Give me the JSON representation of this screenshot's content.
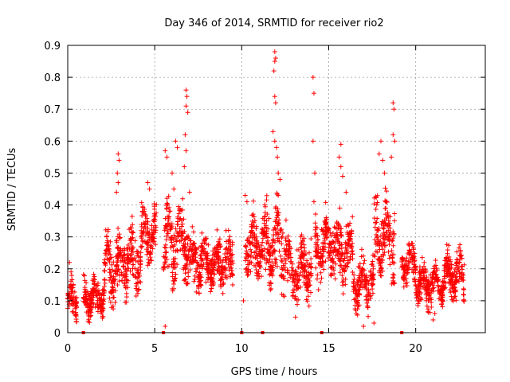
{
  "chart_data": {
    "type": "scatter",
    "title": "Day 346 of 2014, SRMTID for receiver rio2",
    "xlabel": "GPS time / hours",
    "ylabel": "SRMTID / TECUs",
    "xlim": [
      0,
      24
    ],
    "ylim": [
      0,
      0.9
    ],
    "x_ticks": [
      0,
      5,
      10,
      15,
      20
    ],
    "x_tick_labels": [
      "0",
      "5",
      "10",
      "15",
      "20"
    ],
    "y_ticks": [
      0,
      0.1,
      0.2,
      0.3,
      0.4,
      0.5,
      0.6,
      0.7,
      0.8,
      0.9
    ],
    "y_tick_labels": [
      "0",
      "0.1",
      "0.2",
      "0.3",
      "0.4",
      "0.5",
      "0.6",
      "0.7",
      "0.8",
      "0.9"
    ],
    "grid": true,
    "marker": "+",
    "color": "#ff0000",
    "segments": [
      {
        "start": 0.0,
        "end": 0.55,
        "base": 0.1,
        "var": 0.05
      },
      {
        "start": 0.9,
        "end": 2.1,
        "base": 0.11,
        "var": 0.05
      },
      {
        "start": 2.1,
        "end": 3.2,
        "base": 0.2,
        "var": 0.08
      },
      {
        "start": 3.2,
        "end": 4.2,
        "base": 0.22,
        "var": 0.08
      },
      {
        "start": 4.2,
        "end": 5.1,
        "base": 0.3,
        "var": 0.08
      },
      {
        "start": 5.5,
        "end": 7.0,
        "base": 0.28,
        "var": 0.1
      },
      {
        "start": 7.0,
        "end": 8.3,
        "base": 0.22,
        "var": 0.07
      },
      {
        "start": 8.3,
        "end": 9.5,
        "base": 0.22,
        "var": 0.07
      },
      {
        "start": 10.2,
        "end": 11.3,
        "base": 0.27,
        "var": 0.08
      },
      {
        "start": 11.3,
        "end": 12.6,
        "base": 0.27,
        "var": 0.1
      },
      {
        "start": 12.6,
        "end": 14.0,
        "base": 0.2,
        "var": 0.08
      },
      {
        "start": 14.2,
        "end": 15.3,
        "base": 0.27,
        "var": 0.08
      },
      {
        "start": 15.3,
        "end": 16.4,
        "base": 0.25,
        "var": 0.08
      },
      {
        "start": 16.4,
        "end": 17.6,
        "base": 0.15,
        "var": 0.06
      },
      {
        "start": 17.6,
        "end": 18.8,
        "base": 0.3,
        "var": 0.1
      },
      {
        "start": 19.2,
        "end": 20.0,
        "base": 0.22,
        "var": 0.05
      },
      {
        "start": 20.0,
        "end": 21.6,
        "base": 0.15,
        "var": 0.05
      },
      {
        "start": 21.6,
        "end": 22.8,
        "base": 0.18,
        "var": 0.06
      }
    ],
    "outliers": [
      [
        0.1,
        0.22
      ],
      [
        2.9,
        0.56
      ],
      [
        2.95,
        0.54
      ],
      [
        2.85,
        0.5
      ],
      [
        2.9,
        0.47
      ],
      [
        2.8,
        0.44
      ],
      [
        4.6,
        0.47
      ],
      [
        4.7,
        0.45
      ],
      [
        5.6,
        0.57
      ],
      [
        5.7,
        0.55
      ],
      [
        6.0,
        0.5
      ],
      [
        6.2,
        0.6
      ],
      [
        6.3,
        0.58
      ],
      [
        6.1,
        0.45
      ],
      [
        6.8,
        0.76
      ],
      [
        6.85,
        0.74
      ],
      [
        6.8,
        0.71
      ],
      [
        6.9,
        0.69
      ],
      [
        6.75,
        0.62
      ],
      [
        6.8,
        0.57
      ],
      [
        6.7,
        0.52
      ],
      [
        7.0,
        0.44
      ],
      [
        5.6,
        0.02
      ],
      [
        10.1,
        0.1
      ],
      [
        10.2,
        0.43
      ],
      [
        10.3,
        0.41
      ],
      [
        11.9,
        0.88
      ],
      [
        11.95,
        0.86
      ],
      [
        11.9,
        0.85
      ],
      [
        11.85,
        0.82
      ],
      [
        11.9,
        0.74
      ],
      [
        11.95,
        0.72
      ],
      [
        11.8,
        0.63
      ],
      [
        11.9,
        0.6
      ],
      [
        12.0,
        0.58
      ],
      [
        12.05,
        0.55
      ],
      [
        12.1,
        0.5
      ],
      [
        12.2,
        0.48
      ],
      [
        12.1,
        0.43
      ],
      [
        14.1,
        0.8
      ],
      [
        14.15,
        0.75
      ],
      [
        14.1,
        0.6
      ],
      [
        14.2,
        0.5
      ],
      [
        14.15,
        0.41
      ],
      [
        15.7,
        0.59
      ],
      [
        15.6,
        0.55
      ],
      [
        15.7,
        0.52
      ],
      [
        15.8,
        0.49
      ],
      [
        16.0,
        0.44
      ],
      [
        17.0,
        0.02
      ],
      [
        17.6,
        0.03
      ],
      [
        18.0,
        0.6
      ],
      [
        17.9,
        0.56
      ],
      [
        18.1,
        0.54
      ],
      [
        18.2,
        0.5
      ],
      [
        18.7,
        0.72
      ],
      [
        18.75,
        0.7
      ],
      [
        18.7,
        0.62
      ],
      [
        18.8,
        0.6
      ],
      [
        18.6,
        0.55
      ],
      [
        21.0,
        0.04
      ],
      [
        21.1,
        0.06
      ],
      [
        20.9,
        0.08
      ]
    ],
    "baseline_points": [
      [
        0.9,
        0.0
      ],
      [
        5.5,
        0.0
      ],
      [
        10.0,
        0.0
      ],
      [
        11.2,
        0.0
      ],
      [
        14.6,
        0.0
      ],
      [
        19.2,
        0.0
      ]
    ]
  }
}
